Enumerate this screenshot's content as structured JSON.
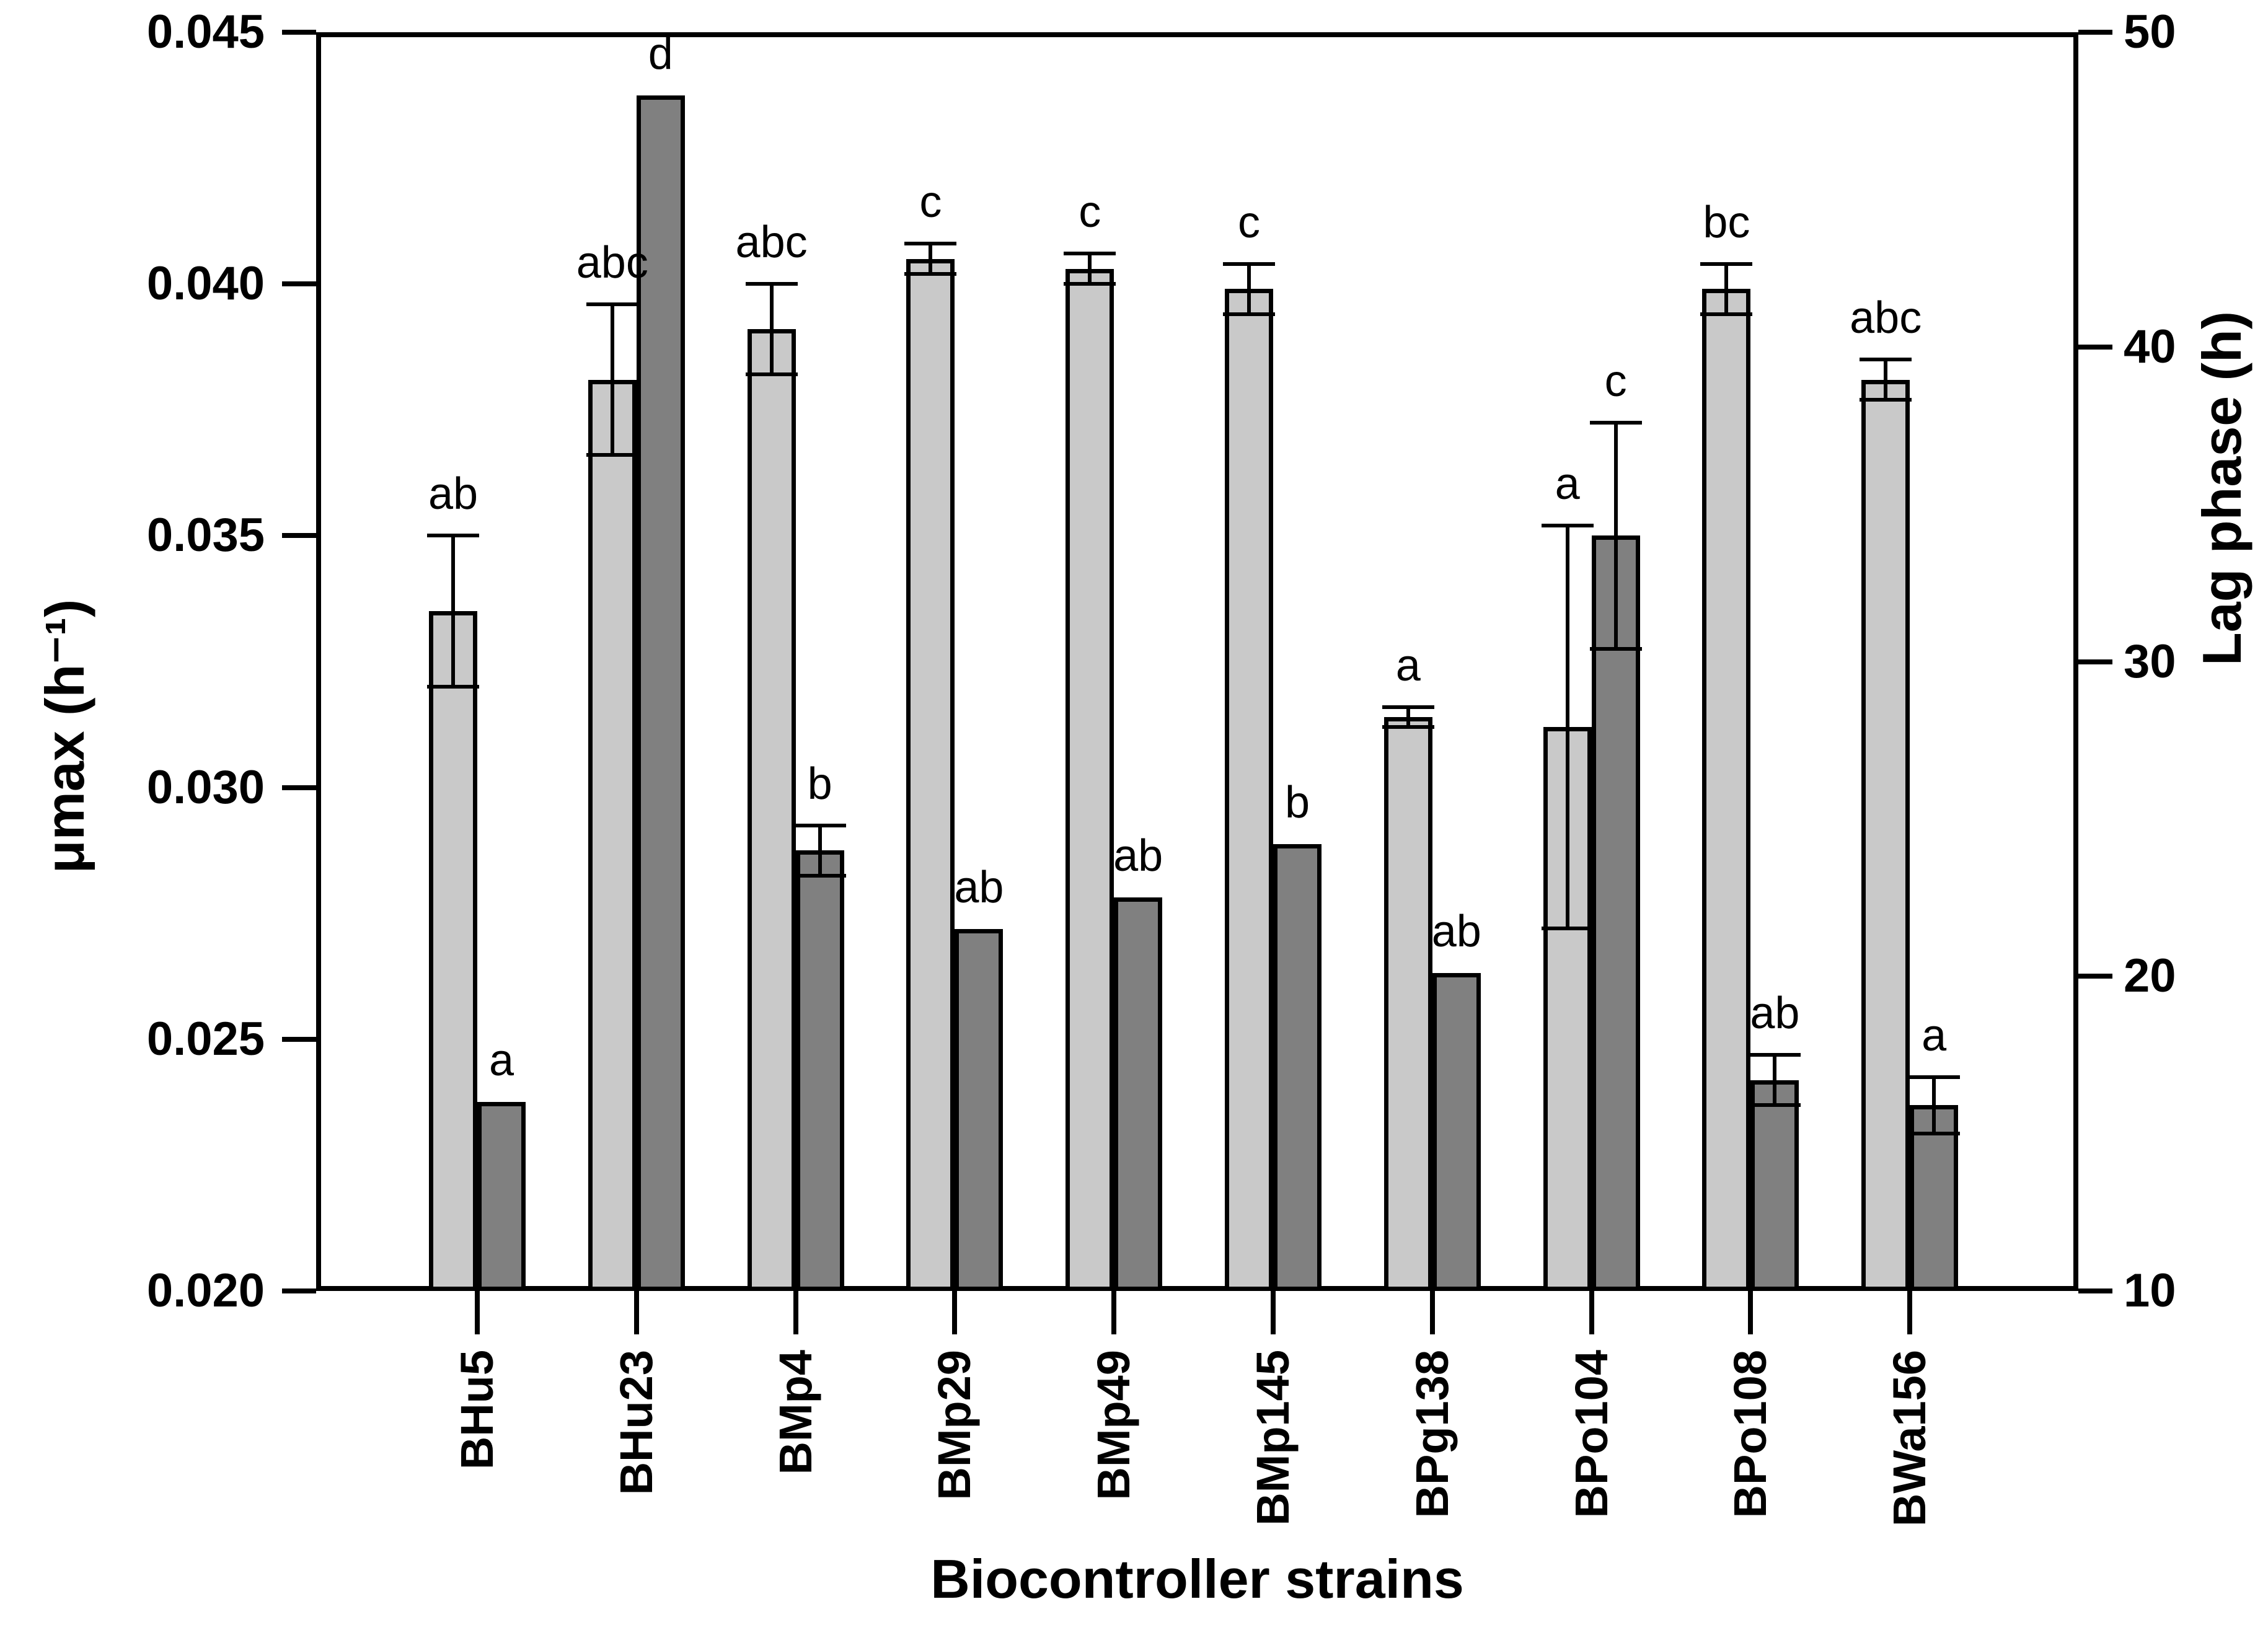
{
  "chart_data": {
    "type": "bar",
    "title": "",
    "xlabel": "Biocontroller strains",
    "categories": [
      "BHu5",
      "BHu23",
      "BMp4",
      "BMp29",
      "BMp49",
      "BMp145",
      "BPg138",
      "BPo104",
      "BPo108",
      "BWa156"
    ],
    "series": [
      {
        "name": "umax",
        "axis": "left",
        "color": "#C9C9C9",
        "values": [
          0.0335,
          0.0381,
          0.0391,
          0.0405,
          0.0403,
          0.0399,
          0.0314,
          0.0312,
          0.0399,
          0.0381
        ],
        "errors": [
          0.0015,
          0.0015,
          0.0009,
          0.0003,
          0.0003,
          0.0005,
          0.0002,
          0.004,
          0.0005,
          0.0004
        ],
        "letters": [
          "ab",
          "abc",
          "abc",
          "c",
          "c",
          "c",
          "a",
          "a",
          "bc",
          "abc"
        ]
      },
      {
        "name": "lag_phase",
        "axis": "right",
        "color": "#808080",
        "values": [
          16.0,
          48.0,
          24.0,
          21.5,
          22.5,
          24.2,
          20.1,
          34.0,
          16.7,
          15.9
        ],
        "errors": [
          0,
          0,
          0.8,
          0,
          0,
          0,
          0,
          3.6,
          0.8,
          0.9
        ],
        "letters": [
          "a",
          "d",
          "b",
          "ab",
          "ab",
          "b",
          "ab",
          "c",
          "ab",
          "a"
        ]
      }
    ],
    "left_axis": {
      "label": "μmax (h⁻¹)",
      "min": 0.02,
      "max": 0.045,
      "tick_labels": [
        "0.045",
        "0.040",
        "0.035",
        "0.030",
        "0.025",
        "0.020"
      ],
      "tick_values": [
        0.045,
        0.04,
        0.035,
        0.03,
        0.025,
        0.02
      ]
    },
    "right_axis": {
      "label": "Lag phase (h)",
      "min": 10,
      "max": 50,
      "tick_labels": [
        "50",
        "40",
        "30",
        "20",
        "10"
      ],
      "tick_values": [
        50,
        40,
        30,
        20,
        10
      ]
    },
    "grid": "off",
    "legend": "none",
    "colors": {
      "light_bar": "#C9C9C9",
      "dark_bar": "#808080",
      "axis": "#000000",
      "background": "#FFFFFF"
    }
  }
}
